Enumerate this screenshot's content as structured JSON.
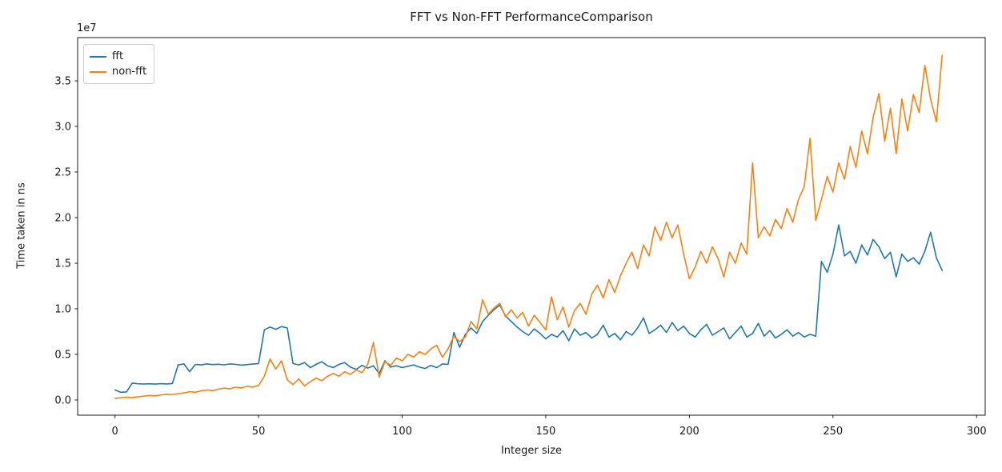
{
  "figure": {
    "title": "FFT vs Non-FFT PerformanceComparison",
    "xlabel": "Integer size",
    "ylabel": "Time taken in ns",
    "offset_text": "1e7",
    "background_color": "#ffffff",
    "text_color": "#1a1a1a",
    "spine_color": "#1a1a1a"
  },
  "legend": {
    "position": "upper left",
    "items": [
      {
        "label": "fft",
        "color": "#1f77b4"
      },
      {
        "label": "non-fft",
        "color": "#ff7f0e"
      }
    ]
  },
  "chart_data": {
    "type": "line",
    "title": "FFT vs Non-FFT PerformanceComparison",
    "xlabel": "Integer size",
    "ylabel": "Time taken in ns",
    "y_offset_label": "1e7",
    "grid": false,
    "legend_position": "upper left",
    "xlim": [
      -13,
      303
    ],
    "ylim": [
      -1670000,
      39740000
    ],
    "x_ticks": {
      "values": [
        0,
        50,
        100,
        150,
        200,
        250,
        300
      ],
      "labels": [
        "0",
        "50",
        "100",
        "150",
        "200",
        "250",
        "300"
      ]
    },
    "y_ticks": {
      "values": [
        0,
        5000000.0,
        10000000.0,
        15000000.0,
        20000000.0,
        25000000.0,
        30000000.0,
        35000000.0
      ],
      "labels": [
        "0.0",
        "0.5",
        "1.0",
        "1.5",
        "2.0",
        "2.5",
        "3.0",
        "3.5"
      ]
    },
    "series": [
      {
        "name": "fft",
        "color": "#1f77b4",
        "x_start": 0,
        "x_step": 2,
        "values": [
          1100000.0,
          850000.0,
          880000.0,
          1850000.0,
          1780000.0,
          1750000.0,
          1780000.0,
          1740000.0,
          1790000.0,
          1760000.0,
          1800000.0,
          3850000.0,
          3950000.0,
          3100000.0,
          3900000.0,
          3850000.0,
          3950000.0,
          3880000.0,
          3920000.0,
          3860000.0,
          3950000.0,
          3900000.0,
          3820000.0,
          3880000.0,
          3940000.0,
          4000000.0,
          7700000.0,
          8000000.0,
          7750000.0,
          8050000.0,
          7900000.0,
          4000000.0,
          3850000.0,
          4100000.0,
          3550000.0,
          3900000.0,
          4200000.0,
          3750000.0,
          3550000.0,
          3900000.0,
          4100000.0,
          3600000.0,
          3350000.0,
          3800000.0,
          3500000.0,
          3750000.0,
          2900000.0,
          4300000.0,
          3600000.0,
          3750000.0,
          3550000.0,
          3700000.0,
          3850000.0,
          3600000.0,
          3450000.0,
          3800000.0,
          3550000.0,
          3950000.0,
          3900000.0,
          7400000.0,
          5800000.0,
          7200000.0,
          7900000.0,
          7300000.0,
          8600000.0,
          9300000.0,
          9900000.0,
          10400000.0,
          9200000.0,
          8600000.0,
          8000000.0,
          7500000.0,
          7100000.0,
          7800000.0,
          7300000.0,
          6700000.0,
          7200000.0,
          6900000.0,
          7600000.0,
          6500000.0,
          7800000.0,
          7100000.0,
          7400000.0,
          6800000.0,
          7200000.0,
          8200000.0,
          6900000.0,
          7300000.0,
          6600000.0,
          7500000.0,
          7100000.0,
          7900000.0,
          9000000.0,
          7300000.0,
          7700000.0,
          8200000.0,
          7400000.0,
          8500000.0,
          7600000.0,
          8100000.0,
          7300000.0,
          6900000.0,
          7700000.0,
          8300000.0,
          7100000.0,
          7500000.0,
          7900000.0,
          6700000.0,
          7400000.0,
          8100000.0,
          6900000.0,
          7300000.0,
          8400000.0,
          7000000.0,
          7600000.0,
          6800000.0,
          7200000.0,
          7700000.0,
          7000000.0,
          7400000.0,
          6900000.0,
          7200000.0,
          7000000.0,
          15200000.0,
          14000000.0,
          16000000.0,
          19200000.0,
          15800000.0,
          16300000.0,
          15000000.0,
          17000000.0,
          15900000.0,
          17600000.0,
          16800000.0,
          15500000.0,
          16200000.0,
          13500000.0,
          16000000.0,
          15200000.0,
          15600000.0,
          14900000.0,
          16300000.0,
          18400000.0,
          15600000.0,
          14200000.0
        ]
      },
      {
        "name": "non-fft",
        "color": "#ff7f0e",
        "x_start": 0,
        "x_step": 2,
        "values": [
          180000.0,
          240000.0,
          300000.0,
          270000.0,
          350000.0,
          420000.0,
          500000.0,
          450000.0,
          550000.0,
          620000.0,
          580000.0,
          700000.0,
          780000.0,
          900000.0,
          850000.0,
          1000000.0,
          1100000.0,
          1020000.0,
          1180000.0,
          1300000.0,
          1220000.0,
          1400000.0,
          1320000.0,
          1500000.0,
          1420000.0,
          1600000.0,
          2600000.0,
          4500000.0,
          3400000.0,
          4300000.0,
          2200000.0,
          1700000.0,
          2300000.0,
          1550000.0,
          2000000.0,
          2400000.0,
          2100000.0,
          2600000.0,
          2900000.0,
          2600000.0,
          3100000.0,
          2800000.0,
          3300000.0,
          3000000.0,
          3900000.0,
          6300000.0,
          2500000.0,
          4200000.0,
          3800000.0,
          4600000.0,
          4300000.0,
          5000000.0,
          4700000.0,
          5300000.0,
          5000000.0,
          5600000.0,
          6000000.0,
          4700000.0,
          5600000.0,
          7000000.0,
          6400000.0,
          6900000.0,
          8600000.0,
          7800000.0,
          11000000.0,
          9400000.0,
          10100000.0,
          10600000.0,
          9100000.0,
          9900000.0,
          9000000.0,
          9600000.0,
          8100000.0,
          9300000.0,
          8500000.0,
          7700000.0,
          11300000.0,
          8800000.0,
          10200000.0,
          8000000.0,
          9800000.0,
          10600000.0,
          9400000.0,
          11600000.0,
          12600000.0,
          11200000.0,
          13200000.0,
          11800000.0,
          13600000.0,
          15000000.0,
          16200000.0,
          14400000.0,
          17000000.0,
          15800000.0,
          19000000.0,
          17500000.0,
          19500000.0,
          17800000.0,
          19200000.0,
          16000000.0,
          13300000.0,
          14600000.0,
          16300000.0,
          15000000.0,
          16800000.0,
          15500000.0,
          13500000.0,
          16200000.0,
          15000000.0,
          17200000.0,
          16000000.0,
          26000000.0,
          17800000.0,
          19000000.0,
          18000000.0,
          19800000.0,
          18800000.0,
          21000000.0,
          19500000.0,
          22000000.0,
          23400000.0,
          28700000.0,
          19700000.0,
          22000000.0,
          24500000.0,
          22800000.0,
          26000000.0,
          24200000.0,
          27800000.0,
          25500000.0,
          29500000.0,
          27000000.0,
          31000000.0,
          33600000.0,
          28400000.0,
          32000000.0,
          27000000.0,
          33000000.0,
          29500000.0,
          33500000.0,
          31500000.0,
          36700000.0,
          33000000.0,
          30500000.0,
          37800000.0
        ]
      }
    ]
  }
}
